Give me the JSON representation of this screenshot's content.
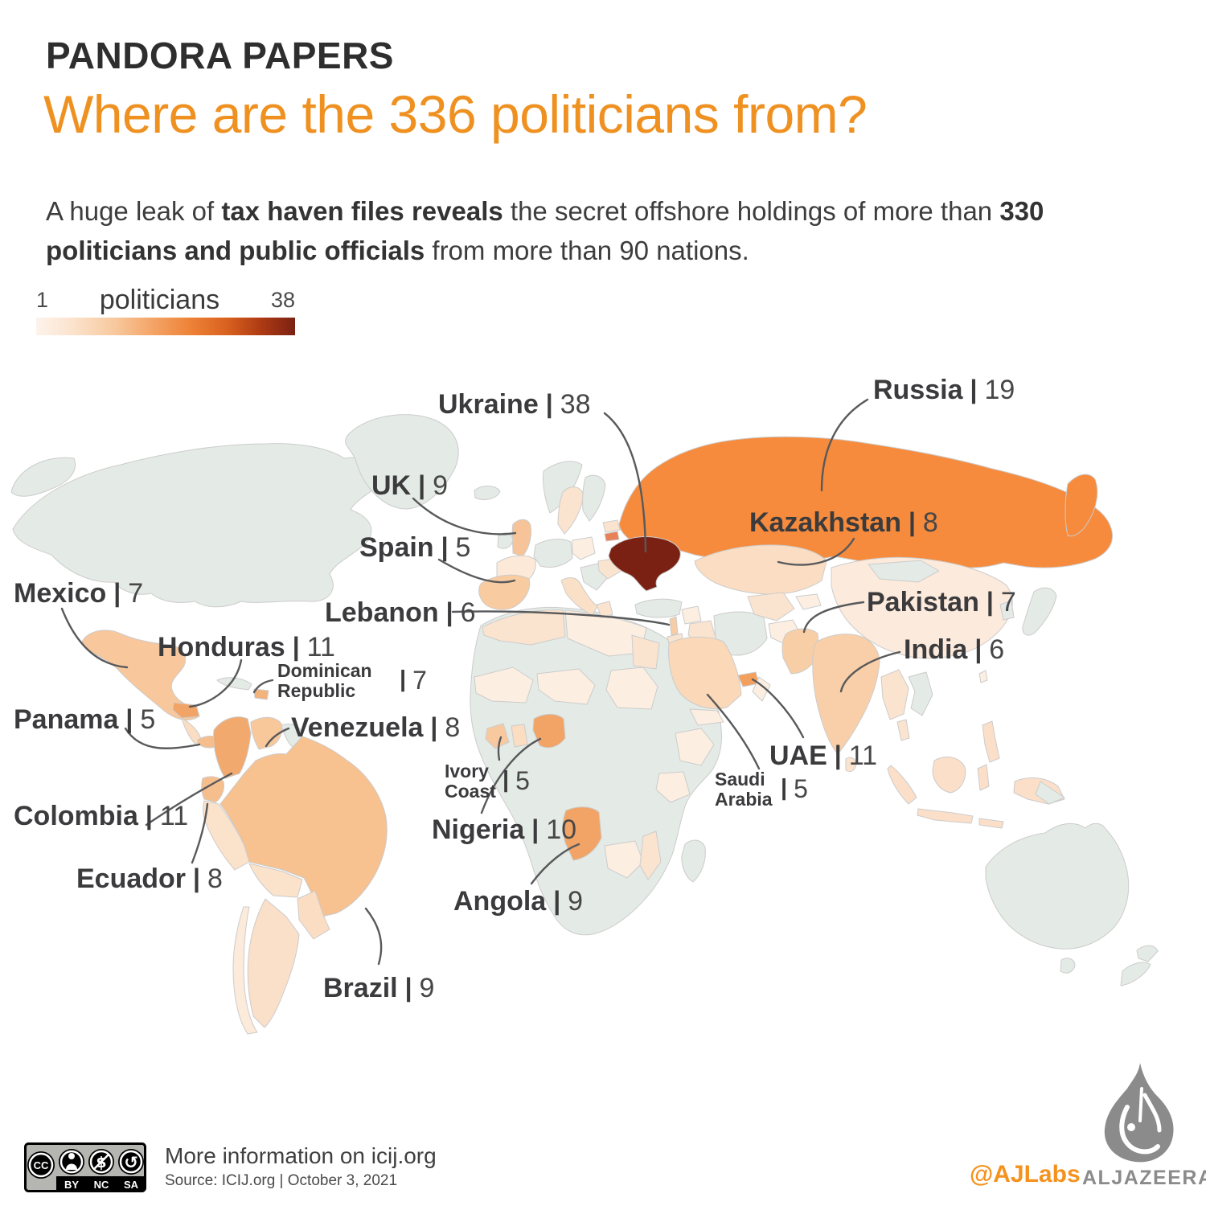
{
  "header": {
    "kicker": "PANDORA PAPERS",
    "title": "Where are the 336 politicians from?",
    "intro_segments": [
      {
        "text": "A huge leak of ",
        "bold": false
      },
      {
        "text": "tax haven files reveals",
        "bold": true
      },
      {
        "text": " the secret offshore holdings of more than ",
        "bold": false
      },
      {
        "text": "330 politicians and public officials",
        "bold": true
      },
      {
        "text": " from more than 90 nations.",
        "bold": false
      }
    ]
  },
  "legend": {
    "min": "1",
    "max": "38",
    "label": "politicians"
  },
  "ui": {
    "separator": "|"
  },
  "chart_data": {
    "type": "heatmap",
    "subtype": "choropleth_world_map",
    "title": "Where are the 336 politicians from?",
    "unit": "politicians",
    "legend": {
      "label": "politicians",
      "min": 1,
      "max": 38
    },
    "scale_colors": [
      "#FDF3EB",
      "#FBE3CD",
      "#F8C99F",
      "#F3A263",
      "#EE8136",
      "#D8601F",
      "#AD3A13",
      "#7B2113"
    ],
    "points": [
      {
        "country": "Ukraine",
        "value": 38
      },
      {
        "country": "Russia",
        "value": 19
      },
      {
        "country": "UK",
        "value": 9
      },
      {
        "country": "Kazakhstan",
        "value": 8
      },
      {
        "country": "Spain",
        "value": 5
      },
      {
        "country": "Mexico",
        "value": 7
      },
      {
        "country": "Lebanon",
        "value": 6
      },
      {
        "country": "Pakistan",
        "value": 7
      },
      {
        "country": "Honduras",
        "value": 11
      },
      {
        "country": "India",
        "value": 6
      },
      {
        "country": "Dominican Republic",
        "value": 7
      },
      {
        "country": "Panama",
        "value": 5
      },
      {
        "country": "Venezuela",
        "value": 8
      },
      {
        "country": "UAE",
        "value": 11
      },
      {
        "country": "Ivory Coast",
        "value": 5
      },
      {
        "country": "Saudi Arabia",
        "value": 5
      },
      {
        "country": "Colombia",
        "value": 11
      },
      {
        "country": "Nigeria",
        "value": 10
      },
      {
        "country": "Ecuador",
        "value": 8
      },
      {
        "country": "Angola",
        "value": 9
      },
      {
        "country": "Brazil",
        "value": 9
      }
    ]
  },
  "footer": {
    "info": "More information on icij.org",
    "source": "Source: ICIJ.org | October 3, 2021",
    "credit": "@AJLabs",
    "brand": "ALJAZEERA",
    "cc": {
      "cc": "CC",
      "by": "BY",
      "nc": "NC",
      "sa": "SA"
    }
  },
  "colors": {
    "title_orange": "#EF9121",
    "map_no_data_green": "#E4EAE5",
    "map_max_dark": "#7B2113",
    "map_high_orange": "#F68B3D",
    "label_text": "#3B3B3D",
    "callout_line": "#58595B",
    "ajlabs_orange": "#F5921E",
    "brand_gray": "#8B8B8B"
  }
}
